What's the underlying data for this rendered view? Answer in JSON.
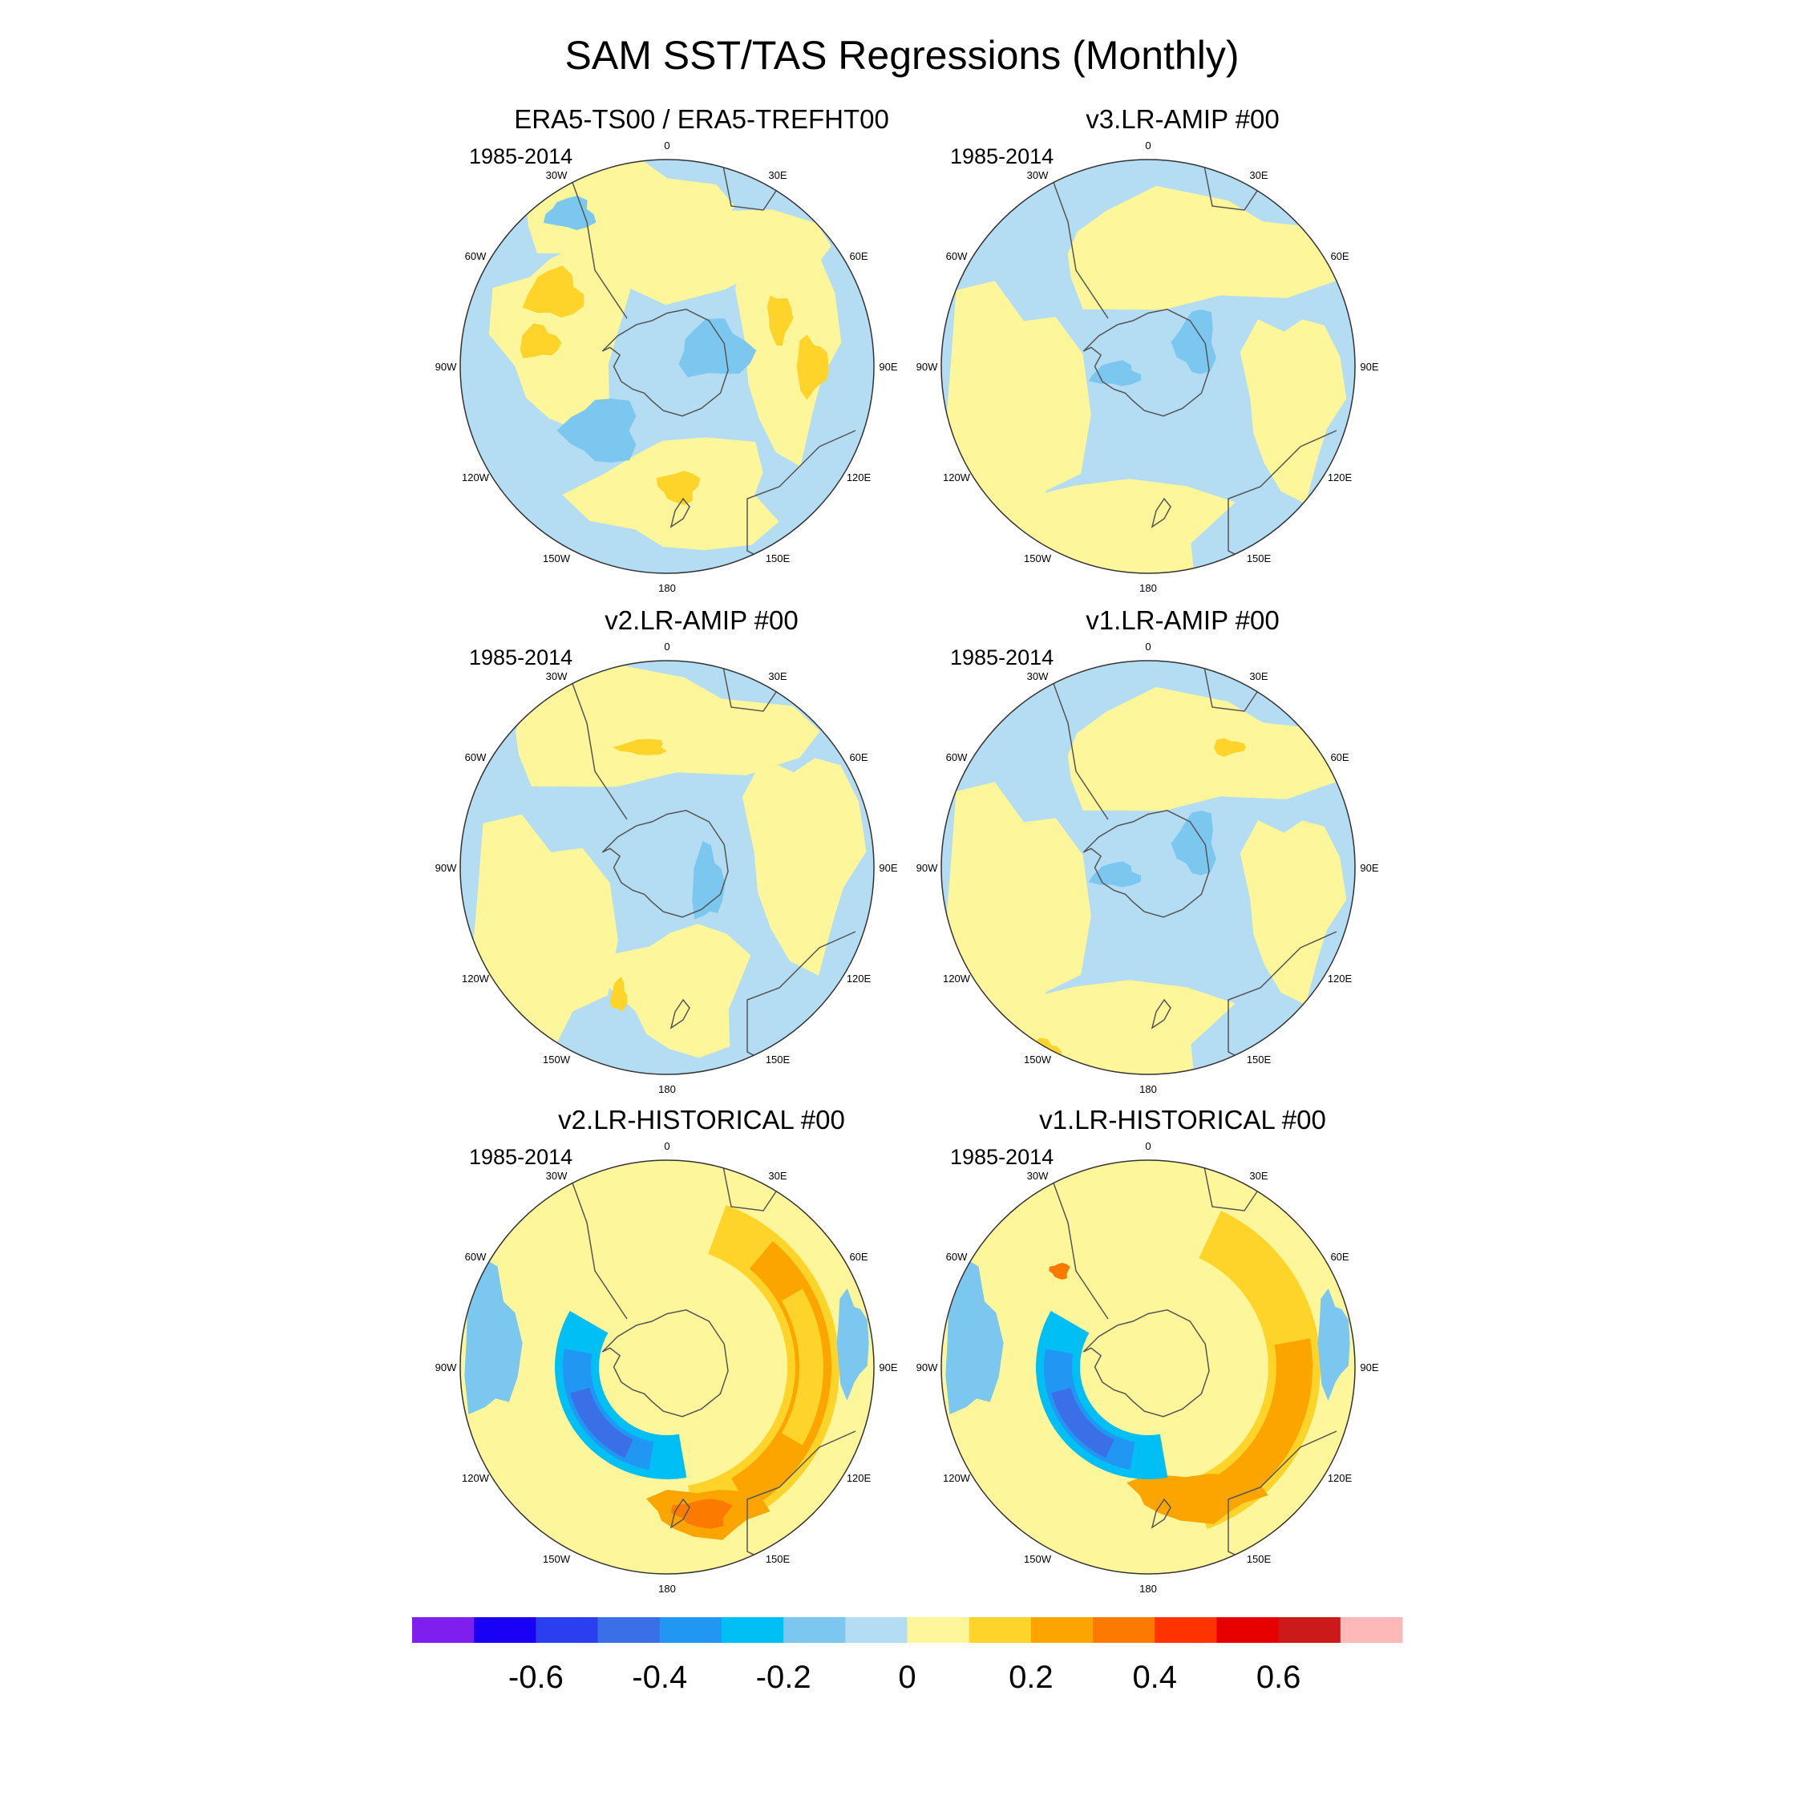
{
  "title": "SAM SST/TAS Regressions (Monthly)",
  "chart_data": {
    "type": "polar-contour-map",
    "projection": "south-polar-stereographic",
    "variable": "SAM regression of SST/TAS",
    "longitude_labels": [
      "0",
      "30E",
      "60E",
      "90E",
      "120E",
      "150E",
      "180",
      "150W",
      "120W",
      "90W",
      "60W",
      "30W"
    ],
    "colorbar": {
      "levels": [
        -0.7,
        -0.6,
        -0.5,
        -0.4,
        -0.3,
        -0.2,
        -0.1,
        0,
        0.1,
        0.2,
        0.3,
        0.4,
        0.5,
        0.6,
        0.7
      ],
      "tick_labels": [
        "-0.6",
        "-0.4",
        "-0.2",
        "0",
        "0.2",
        "0.4",
        "0.6"
      ],
      "colors": [
        "#7e1ff0",
        "#1a00f5",
        "#2b3ff0",
        "#3a6fe8",
        "#2196f3",
        "#00bff5",
        "#7cc7f0",
        "#b4dcf2",
        "#fdf69a",
        "#fed42a",
        "#fca500",
        "#fd7a00",
        "#fe3300",
        "#e60000",
        "#cc1a1a",
        "#fcb9b8"
      ]
    },
    "panels": [
      {
        "name": "ERA5-TS00 / ERA5-TREFHT00",
        "period": "1985-2014",
        "pattern": "weak mixed; scattered positive patches ~0.1-0.2 in Atlantic/Indian sectors, negative patches ~-0.1 near Antarctica and central Pacific sector"
      },
      {
        "name": "v3.LR-AMIP  #00",
        "period": "1985-2014",
        "pattern": "weak positive 0-0.1 over most ocean, weak negative 0 to -0.1 ring near Antarctica"
      },
      {
        "name": "v2.LR-AMIP  #00",
        "period": "1985-2014",
        "pattern": "weak positive 0-0.1 dominant, small 0.1-0.2 patches, weak negative near Antarctica"
      },
      {
        "name": "v1.LR-AMIP  #00",
        "period": "1985-2014",
        "pattern": "weak positive 0-0.1 dominant, weak negative near Antarctica and Pacific"
      },
      {
        "name": "v2.LR-HISTORICAL  #00",
        "period": "1985-2014",
        "pattern": "annular SAM: negative ring -0.2 to -0.4 around Antarctica, positive band 0.1-0.3 at mid-latitudes, max ~0.3 near New Zealand"
      },
      {
        "name": "v1.LR-HISTORICAL  #00",
        "period": "1985-2014",
        "pattern": "annular SAM: negative ring -0.2 to -0.4 around Antarctica, positive band 0.1-0.3 at mid-latitudes, max ~0.3 south of Australia"
      }
    ]
  }
}
